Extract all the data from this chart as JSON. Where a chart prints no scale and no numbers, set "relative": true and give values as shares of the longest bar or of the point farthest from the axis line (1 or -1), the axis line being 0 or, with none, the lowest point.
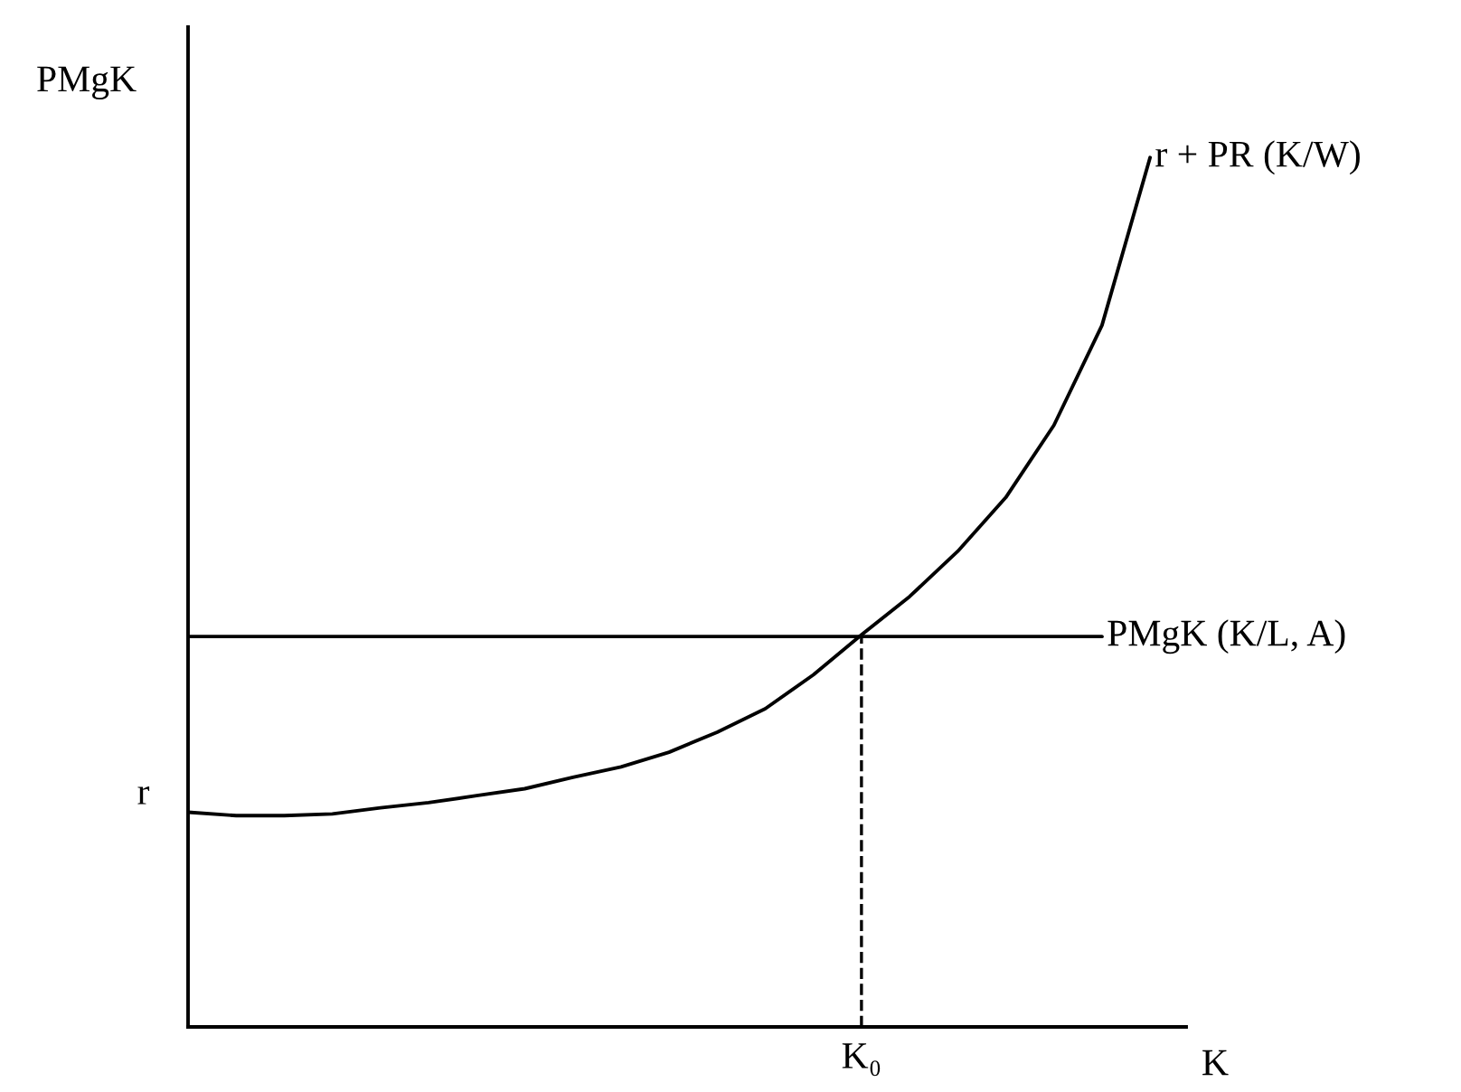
{
  "chart_data": {
    "type": "line",
    "relative": true,
    "xlabel": "K",
    "ylabel": "PMgK",
    "categories": [
      null,
      null,
      null,
      null,
      null,
      null,
      null,
      null,
      null,
      null,
      null,
      null,
      null,
      null,
      null,
      null,
      null,
      null,
      null,
      null,
      null
    ],
    "series": [
      {
        "name": "r + PR (K/W)",
        "color": "#000000",
        "values": [
          0.247,
          0.243,
          0.243,
          0.245,
          0.252,
          0.258,
          0.266,
          0.274,
          0.287,
          0.299,
          0.316,
          0.339,
          0.366,
          0.405,
          0.451,
          0.495,
          0.547,
          0.609,
          0.692,
          0.807,
          1
        ]
      },
      {
        "name": "PMgK (K/L, A)",
        "color": "#000000",
        "values": [
          0.449,
          0.449,
          0.449,
          0.449,
          0.449,
          0.449,
          0.449,
          0.449,
          0.449,
          0.449,
          0.449,
          0.449,
          0.449,
          0.449,
          0.449,
          0.449,
          0.449,
          0.449,
          0.449,
          0.449,
          null
        ]
      }
    ],
    "annotations": [
      "r",
      "K₀"
    ],
    "legend": false,
    "marker": "none",
    "line_style": "solid"
  }
}
